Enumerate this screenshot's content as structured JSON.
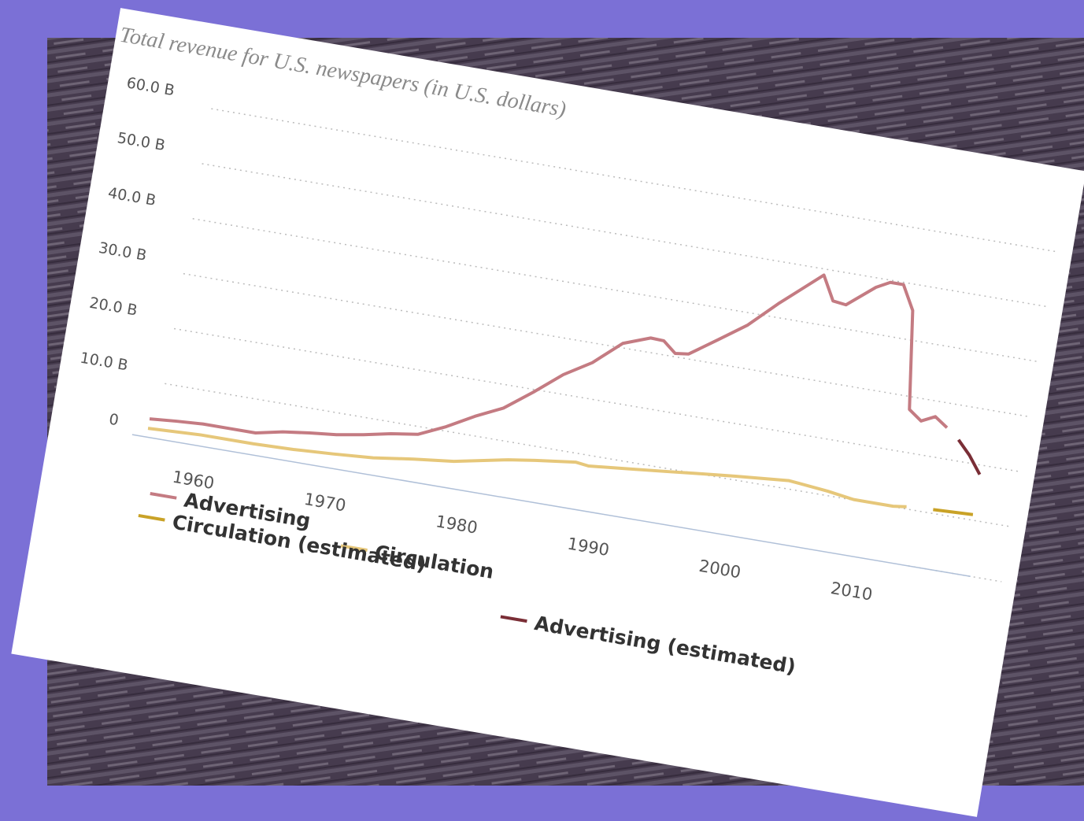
{
  "chart_data": {
    "type": "line",
    "title": "Total revenue for U.S. newspapers (in U.S. dollars)",
    "xlim": [
      1955.5,
      2018
    ],
    "xticks": [
      1960,
      1970,
      1980,
      1990,
      2000,
      2010
    ],
    "ylim": [
      0,
      60
    ],
    "yticks": [
      0,
      {
        "value": 10,
        "label": "10.0 B"
      },
      {
        "value": 20,
        "label": "20.0 B"
      },
      {
        "value": 30,
        "label": "30.0 B"
      },
      {
        "value": 40,
        "label": "40.0 B"
      },
      {
        "value": 50,
        "label": "50.0 B"
      },
      {
        "value": 60,
        "label": "60.0 B"
      }
    ],
    "grid": true,
    "series": [
      {
        "name": "Advertising",
        "color": "#c47b82",
        "x": [
          1956,
          1958,
          1960,
          1962,
          1964,
          1966,
          1968,
          1970,
          1972,
          1974,
          1976,
          1978,
          1980,
          1982,
          1984,
          1986,
          1988,
          1990,
          1992,
          1993,
          1994,
          1995,
          1997,
          1999,
          2001,
          2004,
          2005,
          2006,
          2008,
          2009,
          2010,
          2011,
          2012,
          2013,
          2014,
          2015
        ],
        "values": [
          3.3,
          3.7,
          4.0,
          4.0,
          4.0,
          5.0,
          5.6,
          6.1,
          6.9,
          7.9,
          8.6,
          10.8,
          13.5,
          15.8,
          19.5,
          23.5,
          26.5,
          30.8,
          32.6,
          32.5,
          30.6,
          30.9,
          34.3,
          37.8,
          42.5,
          48.9,
          44.6,
          44.3,
          48.3,
          49.6,
          49.6,
          45.3,
          27.7,
          26.0,
          27.2,
          25.6
        ]
      },
      {
        "name": "Circulation",
        "color": "#e6c77a",
        "x": [
          1956,
          1960,
          1964,
          1967,
          1970,
          1973,
          1976,
          1979,
          1983,
          1985,
          1988,
          1989,
          1992,
          1995,
          1997,
          2000,
          2004,
          2007,
          2009,
          2012,
          2013
        ],
        "values": [
          1.6,
          2.0,
          2.0,
          2.2,
          2.6,
          3.1,
          4.1,
          4.9,
          6.8,
          7.5,
          8.4,
          8.1,
          8.8,
          9.5,
          10.0,
          10.7,
          11.5,
          10.8,
          10.1,
          10.1,
          10.4
        ]
      },
      {
        "name": "Circulation (estimated)",
        "color": "#c9a227",
        "x": [
          2015,
          2018
        ],
        "values": [
          10.7,
          11.0
        ]
      },
      {
        "name": "Advertising (estimated)",
        "color": "#7a2e36",
        "x": [
          2016,
          2017,
          2018
        ],
        "values": [
          23.8,
          21.4,
          18.3
        ]
      }
    ]
  }
}
